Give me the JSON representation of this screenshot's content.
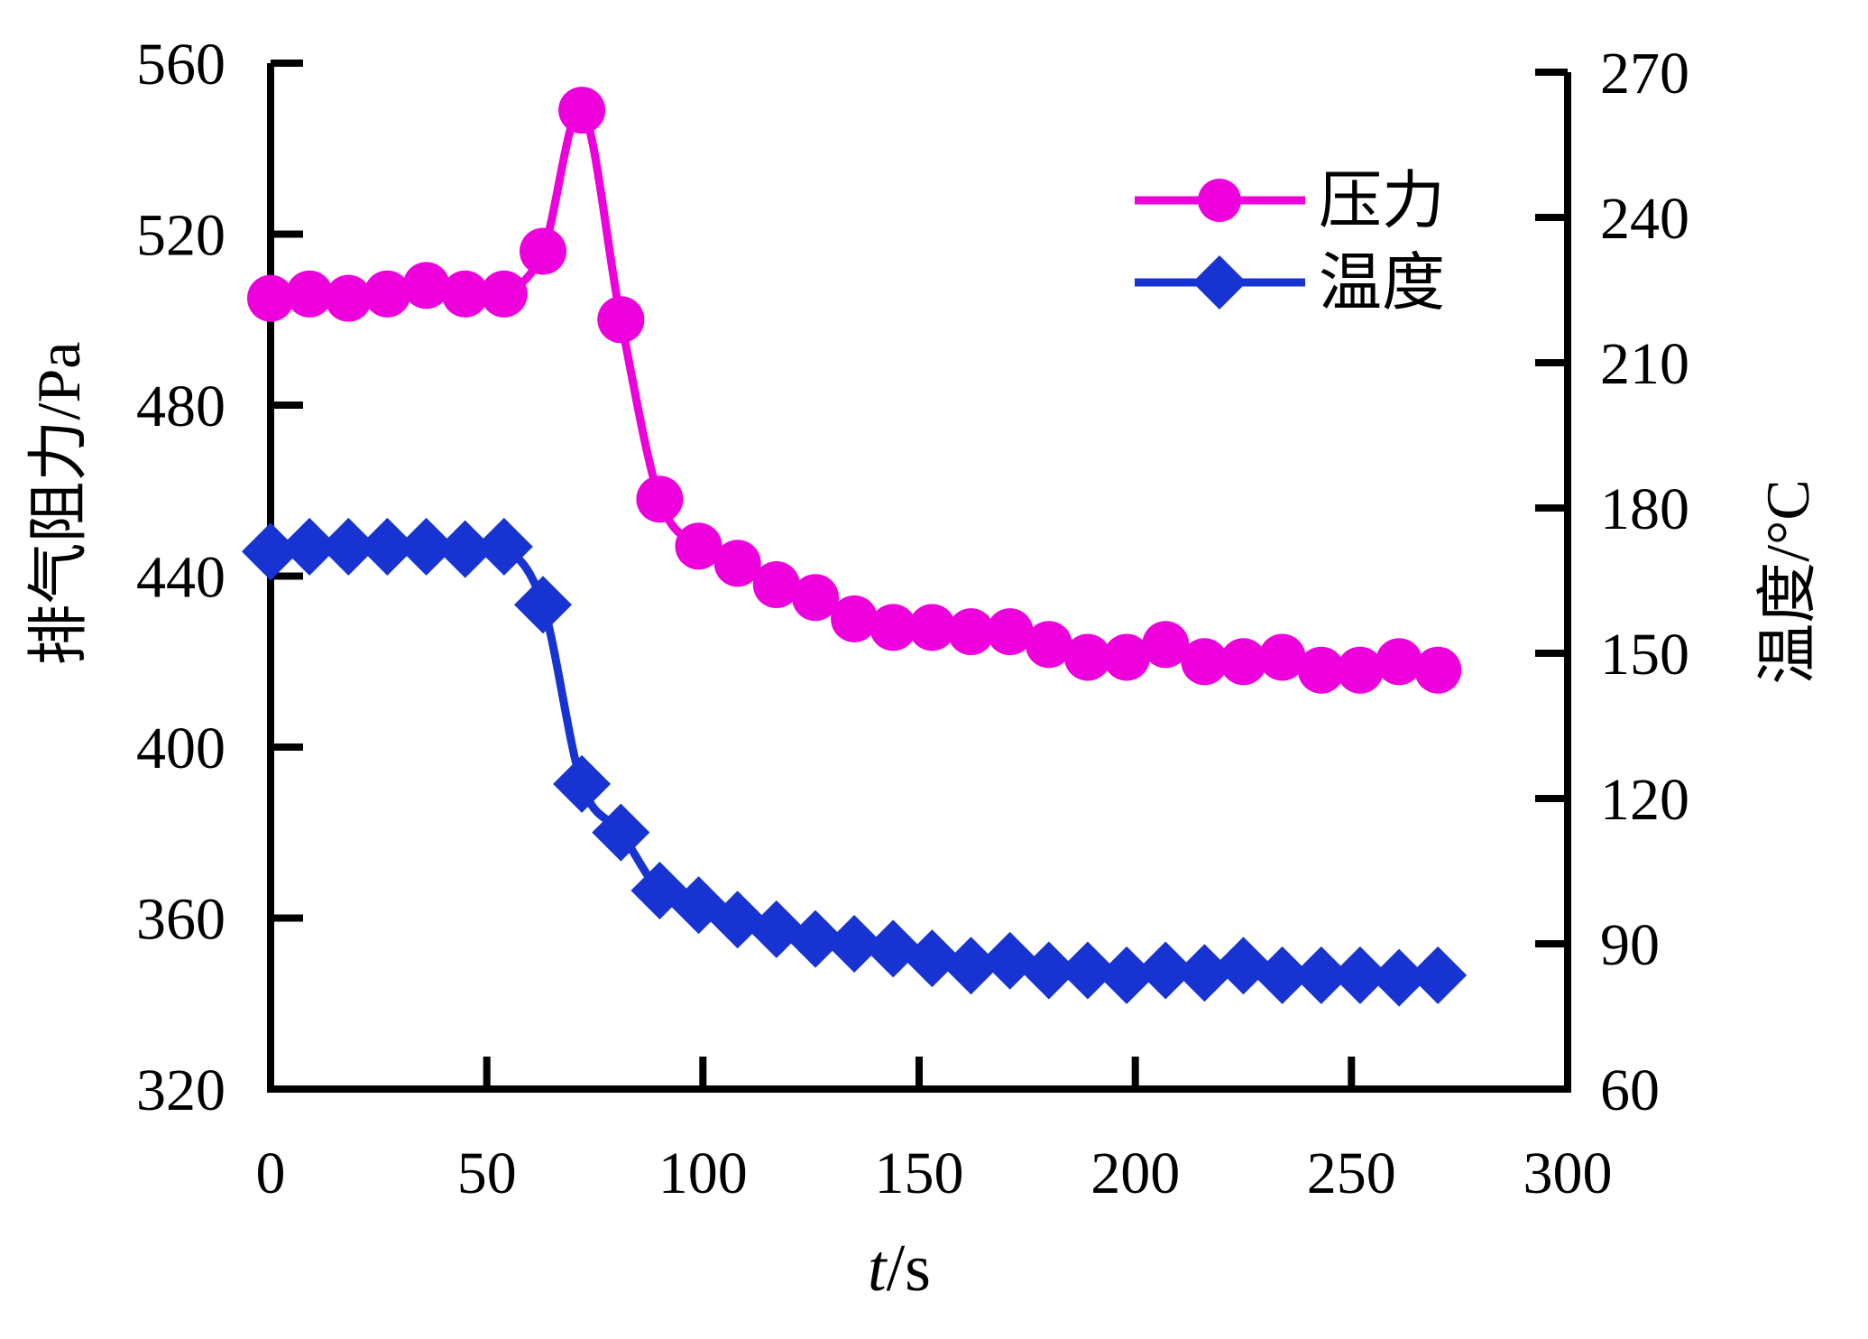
{
  "figure": {
    "xlabel_var": "t",
    "xlabel_rest": "/s",
    "ylabel_left": "排气阻力/Pa",
    "ylabel_right": "温度/°C"
  },
  "chart_data": {
    "type": "line",
    "xlabel": "t/s",
    "ylabel_left": "排气阻力/Pa",
    "ylabel_right": "温度/°C",
    "xlim": [
      0,
      300
    ],
    "ylim_left": [
      320,
      560
    ],
    "ylim_right": [
      60,
      270
    ],
    "x_ticks": [
      0,
      50,
      100,
      150,
      200,
      250,
      300
    ],
    "y_ticks_left": [
      320,
      360,
      400,
      440,
      480,
      520,
      560
    ],
    "y_ticks_right": [
      60,
      90,
      120,
      150,
      180,
      210,
      240,
      270
    ],
    "grid": false,
    "legend_position": "upper right inside",
    "axis_color": "#000000",
    "x": [
      0,
      9,
      18,
      27,
      36,
      45,
      54,
      63,
      72,
      81,
      90,
      99,
      108,
      117,
      126,
      135,
      144,
      153,
      162,
      171,
      180,
      189,
      198,
      207,
      216,
      225,
      234,
      243,
      252,
      261,
      270
    ],
    "series": [
      {
        "name": "压力",
        "axis": "left",
        "unit": "Pa",
        "marker": "circle",
        "color": "#ee00dd",
        "values": [
          505,
          506,
          505,
          506,
          508,
          506,
          506,
          516,
          549,
          500,
          458,
          447,
          443,
          438,
          435,
          430,
          428,
          428,
          427,
          427,
          424,
          421,
          421,
          424,
          420,
          420,
          421,
          418,
          418,
          420,
          418
        ]
      },
      {
        "name": "温度",
        "axis": "right",
        "unit": "°C",
        "marker": "diamond",
        "color": "#1733d1",
        "values": [
          171,
          172,
          172,
          172,
          172,
          171.5,
          172,
          160,
          123,
          113,
          101,
          98,
          95,
          93,
          91,
          90,
          89,
          87,
          85.5,
          86.5,
          84.5,
          84.5,
          83.5,
          84.5,
          84,
          85.5,
          83.5,
          83.5,
          83.5,
          83,
          83.5
        ]
      }
    ]
  }
}
